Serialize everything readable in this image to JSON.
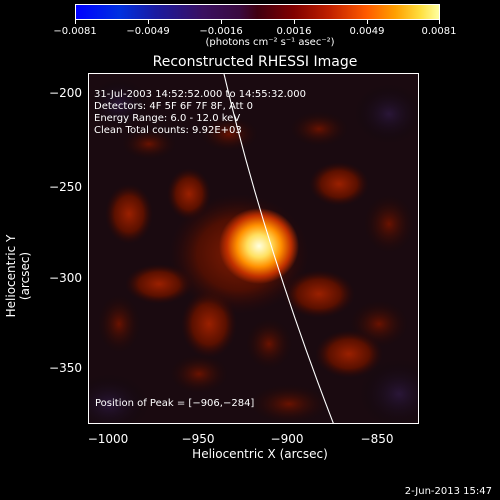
{
  "colorbar": {
    "ticks": [
      "−0.0081",
      "−0.0049",
      "−0.0016",
      "0.0016",
      "0.0049",
      "0.0081"
    ],
    "unit": "(photons cm⁻² s⁻¹ asec⁻²)"
  },
  "title": "Reconstructed RHESSI Image",
  "info": {
    "line1": "31-Jul-2003 14:52:52.000 to 14:55:32.000",
    "line2": "Detectors: 4F 5F 6F 7F 8F, Att 0",
    "line3": "Energy Range: 6.0 - 12.0 keV",
    "line4": "Clean     Total counts: 9.92E+03",
    "peak": "Position of Peak = [−906,−284]"
  },
  "axes": {
    "xlabel": "Heliocentric X (arcsec)",
    "ylabel": "Heliocentric Y (arcsec)",
    "xticks": [
      "−1000",
      "−950",
      "−900",
      "−850"
    ],
    "yticks": [
      "−200",
      "−250",
      "−300",
      "−350"
    ]
  },
  "footer_date": "2-Jun-2013 15:47"
}
